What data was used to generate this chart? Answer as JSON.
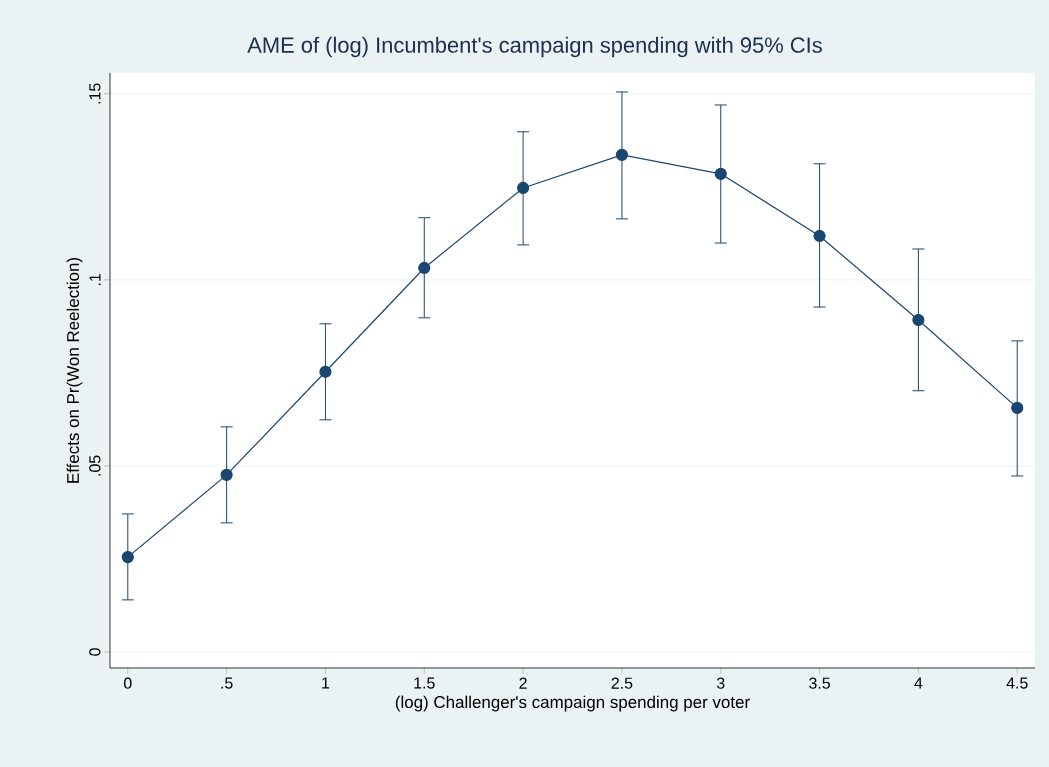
{
  "chart_data": {
    "type": "line",
    "title": "AME of (log) Incumbent's campaign spending with 95% CIs",
    "xlabel": "(log) Challenger's campaign spending per voter",
    "ylabel": "Effects on Pr(Won Reelection)",
    "x": [
      0,
      0.5,
      1,
      1.5,
      2,
      2.5,
      3,
      3.5,
      4,
      4.5
    ],
    "values": [
      0.0255,
      0.0476,
      0.0753,
      0.1032,
      0.1247,
      0.1336,
      0.1285,
      0.1118,
      0.0892,
      0.0656
    ],
    "errors": [
      [
        0.014,
        0.0371
      ],
      [
        0.0347,
        0.0605
      ],
      [
        0.0624,
        0.0882
      ],
      [
        0.0898,
        0.1167
      ],
      [
        0.1094,
        0.1398
      ],
      [
        0.1164,
        0.1505
      ],
      [
        0.1099,
        0.147
      ],
      [
        0.0927,
        0.1312
      ],
      [
        0.0702,
        0.1083
      ],
      [
        0.0473,
        0.0836
      ]
    ],
    "color": "#1a476f",
    "xlim": [
      -0.09,
      4.59
    ],
    "ylim": [
      -0.0043,
      0.1556
    ],
    "xticks": [
      0,
      {
        "value": 0.5,
        "label": ".5"
      },
      1,
      {
        "value": 1.5,
        "label": "1.5"
      },
      2,
      {
        "value": 2.5,
        "label": "2.5"
      },
      3,
      {
        "value": 3.5,
        "label": "3.5"
      },
      4,
      {
        "value": 4.5,
        "label": "4.5"
      }
    ],
    "yticks": [
      0,
      {
        "value": 0.05,
        "label": ".05"
      },
      {
        "value": 0.1,
        "label": ".1"
      },
      {
        "value": 0.15,
        "label": ".15"
      }
    ],
    "grid": "y",
    "marker": "circle",
    "line_style": "solid"
  }
}
